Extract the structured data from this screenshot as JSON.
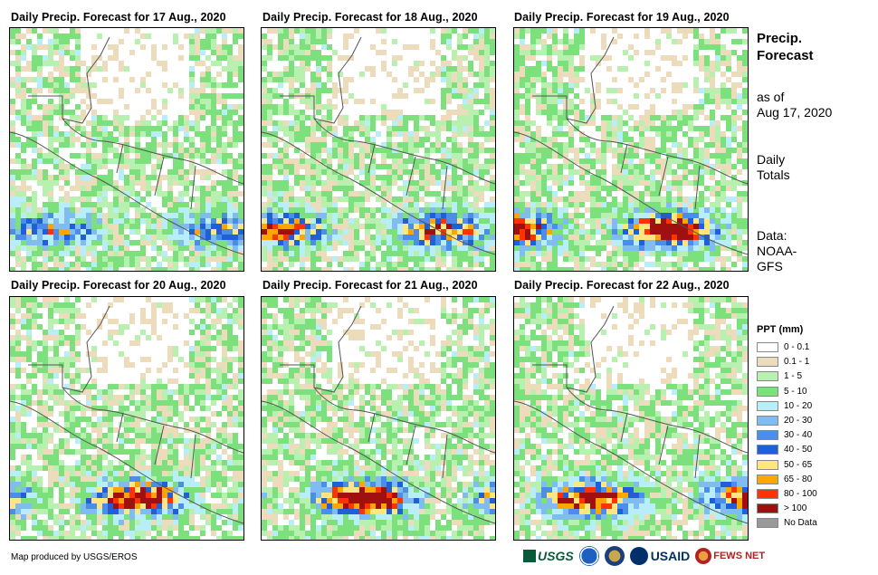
{
  "panels": [
    {
      "title": "Daily Precip. Forecast for 17 Aug., 2020",
      "intensity": 0.2
    },
    {
      "title": "Daily Precip. Forecast for 18 Aug., 2020",
      "intensity": 0.45
    },
    {
      "title": "Daily Precip. Forecast for 19 Aug., 2020",
      "intensity": 0.75
    },
    {
      "title": "Daily Precip. Forecast for 20 Aug., 2020",
      "intensity": 0.7
    },
    {
      "title": "Daily Precip. Forecast for 21 Aug., 2020",
      "intensity": 0.8
    },
    {
      "title": "Daily Precip. Forecast for 22 Aug., 2020",
      "intensity": 0.6
    }
  ],
  "sidebar": {
    "title_line1": "Precip.",
    "title_line2": "Forecast",
    "asof_line1": "as of",
    "asof_line2": "Aug 17, 2020",
    "totals_line1": "Daily",
    "totals_line2": "Totals",
    "data_line1": "Data:",
    "data_line2": "NOAA-",
    "data_line3": "GFS"
  },
  "legend": {
    "title": "PPT (mm)",
    "items": [
      {
        "label": "0 - 0.1",
        "color": "#ffffff"
      },
      {
        "label": "0.1 - 1",
        "color": "#ecdcbc"
      },
      {
        "label": "1 - 5",
        "color": "#b8f0b0"
      },
      {
        "label": "5 - 10",
        "color": "#7ce07c"
      },
      {
        "label": "10 - 20",
        "color": "#b8eefa"
      },
      {
        "label": "20 - 30",
        "color": "#80bcf0"
      },
      {
        "label": "30 - 40",
        "color": "#4a8ee8"
      },
      {
        "label": "40 - 50",
        "color": "#1f5fd8"
      },
      {
        "label": "50 - 65",
        "color": "#ffe680"
      },
      {
        "label": "65 - 80",
        "color": "#ffa500"
      },
      {
        "label": "80 - 100",
        "color": "#ff3300"
      },
      {
        "label": "> 100",
        "color": "#a01010"
      },
      {
        "label": "No Data",
        "color": "#999999"
      }
    ]
  },
  "footer": {
    "credit": "Map produced by USGS/EROS",
    "logo_usgs": "USGS",
    "logo_usaid": "USAID",
    "logo_fews": "FEWS NET"
  }
}
